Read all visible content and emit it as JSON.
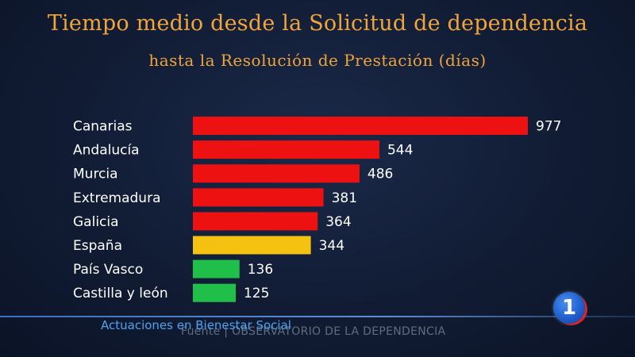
{
  "title": "Tiempo medio desde la Solicitud de dependencia",
  "subtitle": "hasta la Resolución de Prestación (días)",
  "chart_data": {
    "type": "bar",
    "orientation": "horizontal",
    "title": "Tiempo medio desde la Solicitud de dependencia",
    "subtitle": "hasta la Resolución de Prestación (días)",
    "categories": [
      "Canarias",
      "Andalucía",
      "Murcia",
      "Extremadura",
      "Galicia",
      "España",
      "País Vasco",
      "Castilla y león"
    ],
    "values": [
      977,
      544,
      486,
      381,
      364,
      344,
      136,
      125
    ],
    "colors": [
      "#ee1111",
      "#ee1111",
      "#ee1111",
      "#ee1111",
      "#ee1111",
      "#f5c211",
      "#1fbf4a",
      "#1fbf4a"
    ],
    "xlim": [
      0,
      977
    ],
    "xlabel": "",
    "ylabel": "",
    "grid": false,
    "legend": "none"
  },
  "ticker": {
    "label": "Actuaciones en Bienestar Social"
  },
  "source": "Fuente | OBSERVATORIO DE LA DEPENDENCIA",
  "channel_logo": "1",
  "colors": {
    "title": "#f0a43a",
    "ticker": "#4ea3f0"
  }
}
